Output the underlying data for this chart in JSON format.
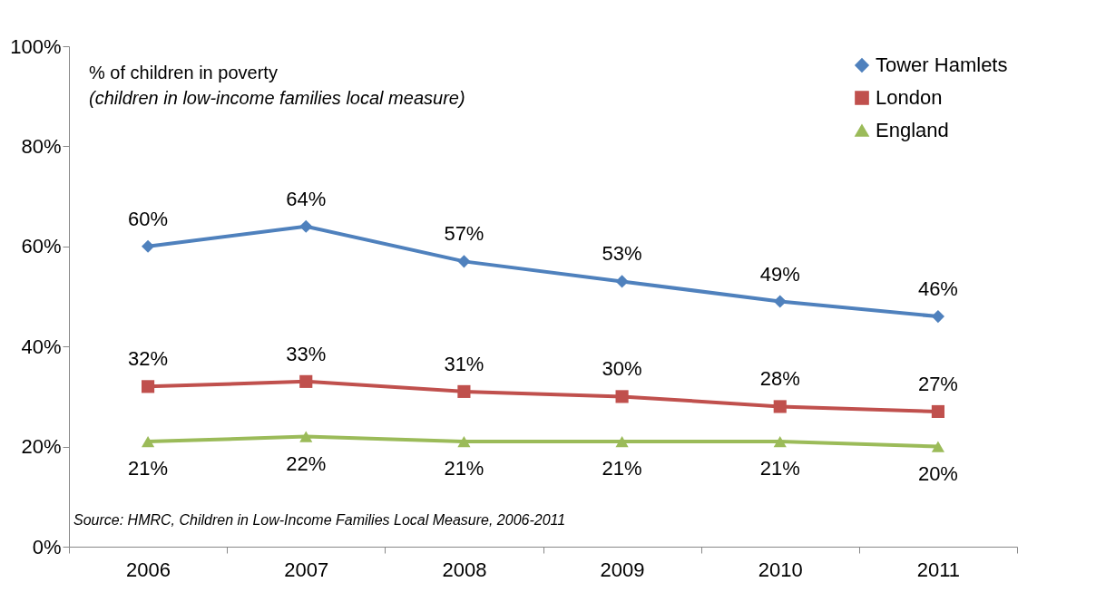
{
  "chart_data": {
    "type": "line",
    "title": "% of children in poverty",
    "subtitle": "(children in low-income families local measure)",
    "categories": [
      "2006",
      "2007",
      "2008",
      "2009",
      "2010",
      "2011"
    ],
    "series": [
      {
        "name": "Tower Hamlets",
        "color": "#4f81bd",
        "marker": "diamond",
        "values": [
          60,
          64,
          57,
          53,
          49,
          46
        ],
        "value_labels": [
          "60%",
          "64%",
          "57%",
          "53%",
          "49%",
          "46%"
        ]
      },
      {
        "name": "London",
        "color": "#c0504d",
        "marker": "square",
        "values": [
          32,
          33,
          31,
          30,
          28,
          27
        ],
        "value_labels": [
          "32%",
          "33%",
          "31%",
          "30%",
          "28%",
          "27%"
        ]
      },
      {
        "name": "England",
        "color": "#9bbb59",
        "marker": "triangle",
        "values": [
          21,
          22,
          21,
          21,
          21,
          20
        ],
        "value_labels": [
          "21%",
          "22%",
          "21%",
          "21%",
          "21%",
          "20%"
        ]
      }
    ],
    "ylim": [
      0,
      100
    ],
    "yticks": [
      {
        "value": 0,
        "label": "0%"
      },
      {
        "value": 20,
        "label": "20%"
      },
      {
        "value": 40,
        "label": "40%"
      },
      {
        "value": 60,
        "label": "60%"
      },
      {
        "value": 80,
        "label": "80%"
      },
      {
        "value": 100,
        "label": "100%"
      }
    ],
    "grid": false,
    "legend": "top right",
    "line_style": "solid",
    "annotations": [
      "Source: HMRC, Children in Low-Income Families Local Measure, 2006-2011"
    ]
  }
}
